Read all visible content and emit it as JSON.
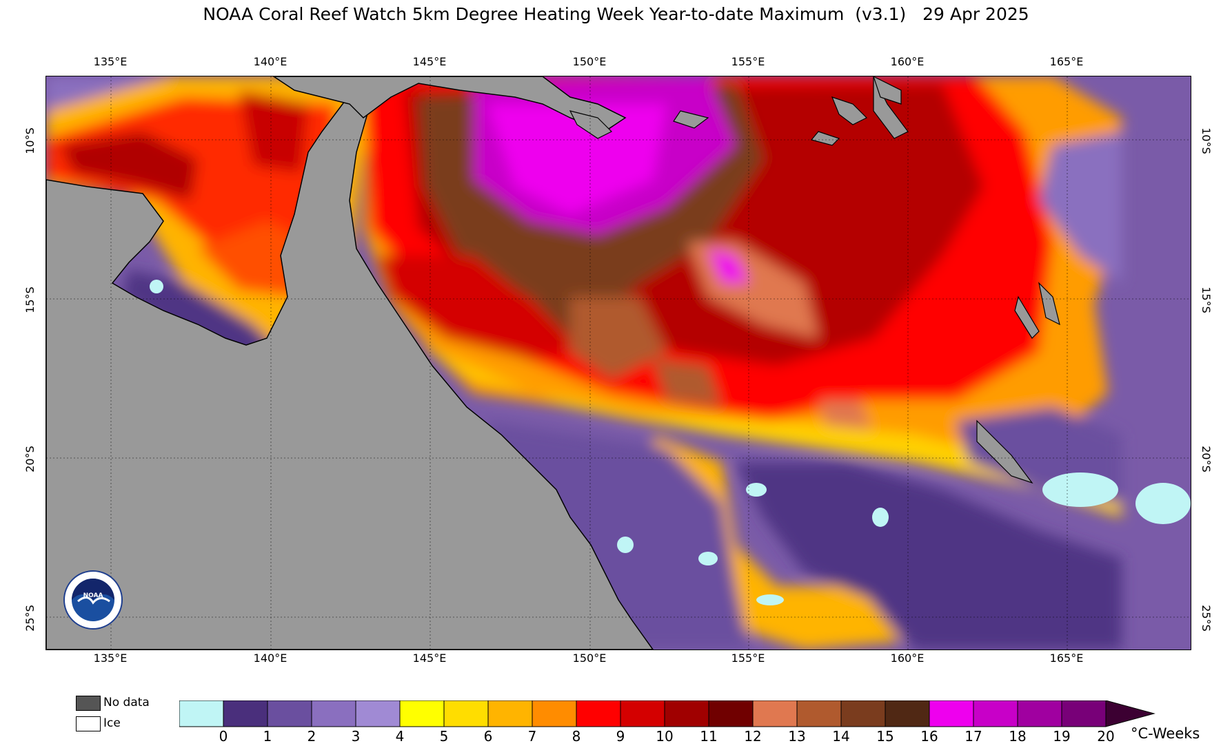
{
  "title": "NOAA Coral Reef Watch 5km Degree Heating Week Year-to-date Maximum  (v3.1)   29 Apr 2025",
  "lon_labels": [
    "135°E",
    "140°E",
    "145°E",
    "150°E",
    "155°E",
    "160°E",
    "165°E"
  ],
  "lat_labels": [
    "10°S",
    "15°S",
    "20°S",
    "25°S"
  ],
  "legend": {
    "nodata_label": "No data",
    "ice_label": "Ice"
  },
  "colorbar": {
    "ticks": [
      "0",
      "1",
      "2",
      "3",
      "4",
      "5",
      "6",
      "7",
      "8",
      "9",
      "10",
      "11",
      "12",
      "13",
      "14",
      "15",
      "16",
      "17",
      "18",
      "19",
      "20"
    ],
    "units": "°C-Weeks",
    "colors": [
      "#c0f5f5",
      "#4a2f7c",
      "#6a4f9f",
      "#8a6fbf",
      "#a08ad4",
      "#ffff00",
      "#ffdd00",
      "#ffb400",
      "#ff8c00",
      "#ff0000",
      "#d40000",
      "#a00000",
      "#700000",
      "#e07850",
      "#b05a2e",
      "#7a3c1e",
      "#502814",
      "#ee00ee",
      "#c800c8",
      "#a000a0",
      "#780078",
      "#3c0032"
    ]
  },
  "colors": {
    "land": "#999999",
    "nodata": "#555555",
    "ice": "#ffffff",
    "ocean_default": "#7b5aa6"
  }
}
